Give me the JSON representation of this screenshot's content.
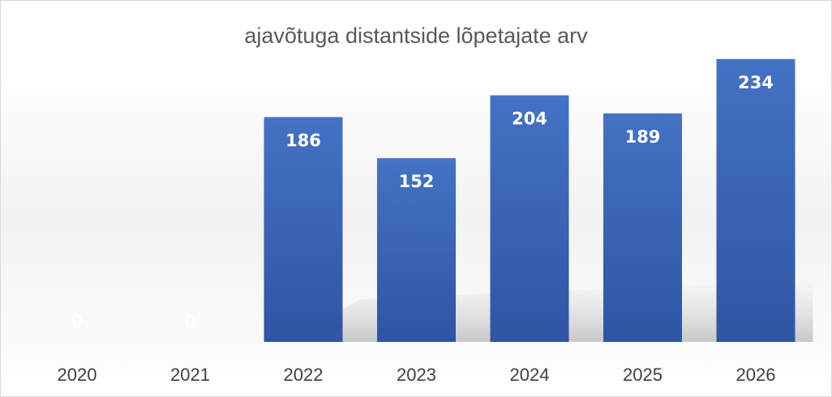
{
  "chart_data": {
    "type": "bar",
    "title": "ajavõtuga distantside lõpetajate arv",
    "categories": [
      "2020",
      "2021",
      "2022",
      "2023",
      "2024",
      "2025",
      "2026"
    ],
    "values": [
      0,
      0,
      186,
      152,
      204,
      189,
      234
    ],
    "ylim": [
      0,
      250
    ],
    "grid": false,
    "legend": "none",
    "colors": {
      "bar": "#4472c4",
      "bar_dark": "#2f55a4",
      "label": "#ffffff"
    }
  }
}
